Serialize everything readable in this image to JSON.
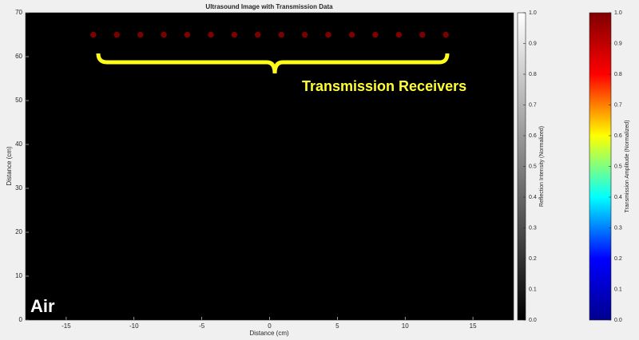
{
  "chart_data": {
    "type": "scatter",
    "title": "Ultrasound Image with Transmission Data",
    "x_label": "Distance (cm)",
    "y_label": "Distance (cm)",
    "x": [
      -13,
      -11.27,
      -9.53,
      -7.8,
      -6.07,
      -4.33,
      -2.6,
      -0.87,
      0.87,
      2.6,
      4.33,
      6.07,
      7.8,
      9.53,
      11.27,
      13
    ],
    "series": [
      {
        "color": "#7a0000",
        "values": [
          65,
          65,
          65,
          65,
          65,
          65,
          65,
          65,
          65,
          65,
          65,
          65,
          65,
          65,
          65,
          65
        ]
      }
    ],
    "background": "#000000",
    "xlim": [
      -18,
      18
    ],
    "xticks": [
      -15,
      -10,
      -5,
      0,
      5,
      10,
      15
    ],
    "ylim": [
      0,
      70
    ],
    "yticks": [
      0,
      10,
      20,
      30,
      40,
      50,
      60,
      70
    ],
    "annotations": [
      "Transmission Receivers",
      "Air"
    ],
    "colorbars": [
      {
        "label": "Reflection Intensity (Normalized)",
        "colors": [
          "#000000",
          "#ffffff"
        ],
        "lim": [
          0,
          1
        ],
        "ticks": [
          {
            "value": 0,
            "label": "0.0"
          },
          0.1,
          0.2,
          0.3,
          0.4,
          0.5,
          0.6,
          0.7,
          0.8,
          0.9,
          {
            "value": 1,
            "label": "1.0"
          }
        ]
      },
      {
        "label": "Transmission Amplitude (Normalized)",
        "colors": [
          "#00008f",
          "#0000ff",
          "#00ffff",
          "#ffff00",
          "#ff0000",
          "#800000"
        ],
        "lim": [
          0,
          1
        ],
        "ticks": [
          {
            "value": 0,
            "label": "0.0"
          },
          0.1,
          0.2,
          0.3,
          0.4,
          0.5,
          0.6,
          0.7,
          0.8,
          0.9,
          {
            "value": 1,
            "label": "1.0"
          }
        ]
      }
    ]
  }
}
